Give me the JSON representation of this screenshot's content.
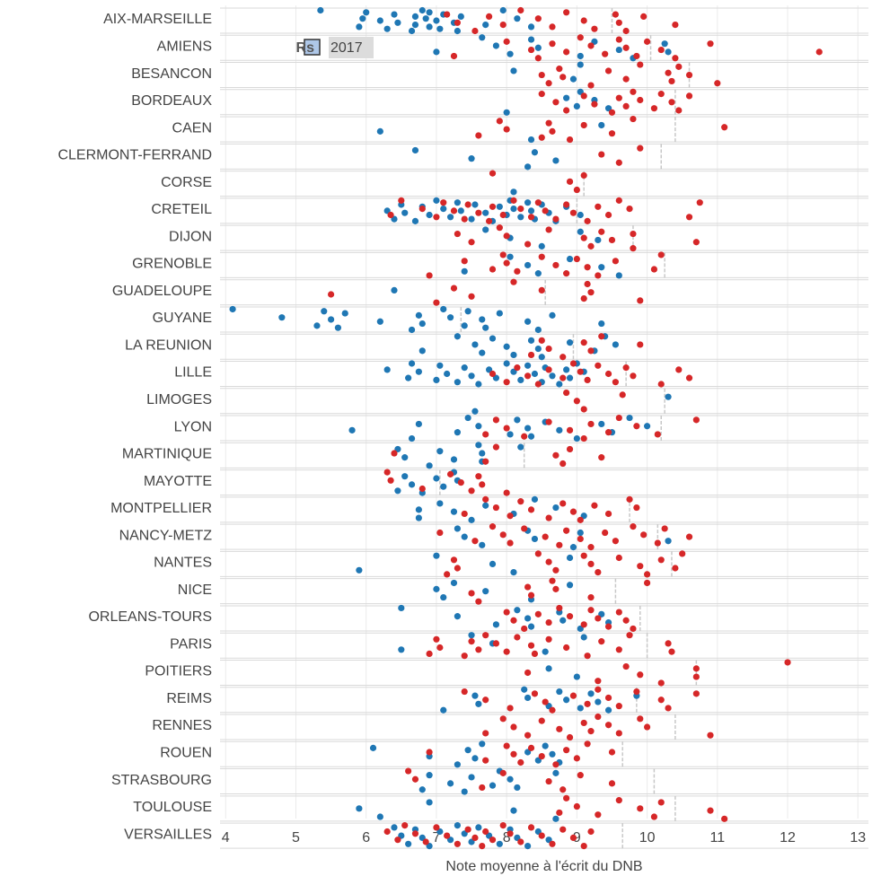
{
  "chart_data": {
    "type": "strip",
    "x_label": "Note moyenne à l'écrit du DNB",
    "xlim": [
      3.92,
      13.15
    ],
    "xticks": [
      4,
      5,
      6,
      7,
      8,
      9,
      10,
      11,
      12,
      13
    ],
    "grid": true,
    "legend_title": "Rs",
    "categories": [
      "AIX-MARSEILLE",
      "AMIENS",
      "BESANCON",
      "BORDEAUX",
      "CAEN",
      "CLERMONT-FERRAND",
      "CORSE",
      "CRETEIL",
      "DIJON",
      "GRENOBLE",
      "GUADELOUPE",
      "GUYANE",
      "LA REUNION",
      "LILLE",
      "LIMOGES",
      "LYON",
      "MARTINIQUE",
      "MAYOTTE",
      "MONTPELLIER",
      "NANCY-METZ",
      "NANTES",
      "NICE",
      "ORLEANS-TOURS",
      "PARIS",
      "POITIERS",
      "REIMS",
      "RENNES",
      "ROUEN",
      "STRASBOURG",
      "TOULOUSE",
      "VERSAILLES"
    ],
    "markers": [
      9.5,
      10.05,
      10.6,
      10.4,
      10.4,
      10.2,
      9.1,
      9.0,
      9.8,
      10.25,
      8.55,
      7.35,
      8.95,
      9.7,
      10.25,
      10.2,
      8.25,
      7.05,
      9.75,
      10.15,
      10.35,
      9.55,
      9.9,
      10.0,
      10.7,
      9.85,
      10.4,
      9.65,
      10.1,
      10.4,
      9.65
    ],
    "series": [
      {
        "name": "2017",
        "color": "#1f77b4",
        "legend_fill": "#aec7e8",
        "values": [
          [
            5.35,
            5.95,
            5.9,
            6.0,
            6.2,
            6.3,
            6.4,
            6.45,
            6.65,
            6.7,
            6.7,
            6.8,
            6.85,
            6.9,
            6.9,
            7.0,
            7.05,
            7.1,
            7.25,
            7.3,
            7.35,
            7.7,
            7.95,
            8.15,
            8.35
          ],
          [
            7.0,
            7.65,
            7.85,
            8.05,
            8.35,
            8.45,
            9.05,
            9.25,
            9.6,
            9.8,
            10.25,
            10.3
          ],
          [
            8.1,
            8.95,
            9.05
          ],
          [
            8.0,
            8.85,
            9.0,
            9.05,
            9.25,
            9.45
          ],
          [
            6.2,
            8.35,
            9.35
          ],
          [
            6.7,
            7.5,
            8.3,
            8.4,
            8.7
          ],
          [
            8.1
          ],
          [
            6.3,
            6.4,
            6.5,
            6.55,
            6.7,
            6.8,
            6.9,
            7.0,
            7.1,
            7.2,
            7.3,
            7.35,
            7.5,
            7.55,
            7.7,
            7.8,
            7.9,
            8.0,
            8.05,
            8.1,
            8.2,
            8.3,
            8.35,
            8.4,
            8.5,
            8.6,
            8.7,
            8.85,
            9.05
          ],
          [
            7.7,
            8.05,
            8.5,
            9.05,
            9.3
          ],
          [
            7.4,
            8.05,
            8.3,
            8.45,
            8.9,
            9.35,
            9.6
          ],
          [
            6.4
          ],
          [
            4.1,
            4.8,
            5.3,
            5.4,
            5.5,
            5.6,
            5.7,
            6.2,
            6.65,
            6.75,
            6.8,
            7.1,
            7.2,
            7.4,
            7.45,
            7.65,
            7.7,
            7.9,
            8.3,
            8.45,
            8.65,
            9.35
          ],
          [
            6.8,
            7.3,
            7.55,
            7.65,
            7.8,
            8.0,
            8.1,
            8.35,
            8.45,
            8.5,
            8.9,
            9.25,
            9.4,
            9.55
          ],
          [
            6.3,
            6.6,
            6.65,
            6.75,
            7.0,
            7.05,
            7.15,
            7.3,
            7.4,
            7.5,
            7.6,
            7.75,
            7.85,
            8.0,
            8.1,
            8.2,
            8.3,
            8.4,
            8.5,
            8.55,
            8.65,
            8.75,
            8.85,
            8.9,
            9.0,
            9.1
          ],
          [
            7.55,
            10.3
          ],
          [
            5.8,
            6.65,
            6.75,
            7.3,
            7.45,
            7.6,
            8.05,
            8.15,
            8.3,
            8.35,
            8.55,
            8.75,
            9.0,
            9.35,
            9.5,
            9.75,
            10.0
          ],
          [
            6.45,
            6.55,
            6.9,
            7.05,
            7.25,
            7.6,
            7.65,
            7.65,
            8.2
          ],
          [
            6.45,
            6.55,
            6.65,
            6.8,
            7.0,
            7.1,
            7.25,
            7.3
          ],
          [
            6.75,
            6.75,
            7.05,
            7.25,
            7.5,
            7.7,
            8.1,
            8.4,
            8.7,
            9.1
          ],
          [
            7.3,
            7.4,
            7.65,
            8.3,
            8.4,
            8.95,
            9.05,
            10.3
          ],
          [
            5.9,
            7.0,
            7.8,
            8.1,
            8.9
          ],
          [
            7.0,
            7.1,
            7.25,
            7.7,
            8.35,
            8.9
          ],
          [
            6.5,
            7.3,
            7.85,
            8.15,
            8.3,
            8.35,
            8.75,
            8.8,
            9.05,
            9.35,
            9.45
          ],
          [
            6.5,
            7.5,
            7.8,
            8.55,
            9.1
          ],
          [
            8.6,
            9.0
          ],
          [
            7.1,
            7.55,
            7.6,
            8.25,
            8.3,
            8.6,
            8.75,
            8.85,
            9.05,
            9.2,
            9.3,
            9.45,
            9.85
          ],
          [],
          [
            6.1,
            6.9,
            7.3,
            7.45,
            7.55,
            7.65,
            8.3,
            8.45,
            8.55,
            8.65,
            8.75
          ],
          [
            6.8,
            6.9,
            7.2,
            7.4,
            7.5,
            7.8,
            7.9,
            8.05,
            8.15,
            8.7
          ],
          [
            5.9,
            6.2,
            6.9,
            8.1,
            8.7
          ],
          [
            6.4,
            6.5,
            6.6,
            6.7,
            6.8,
            6.9,
            7.05,
            7.2,
            7.3,
            7.4,
            7.5,
            7.6,
            7.75,
            7.9,
            8.05,
            8.15,
            8.3,
            8.45,
            8.6
          ]
        ]
      },
      {
        "color": "#d62728",
        "values": [
          [
            7.15,
            7.3,
            7.55,
            7.75,
            7.95,
            8.2,
            8.45,
            8.65,
            8.85,
            9.1,
            9.25,
            9.55,
            9.6,
            9.7,
            9.95,
            10.4
          ],
          [
            7.25,
            8.0,
            8.35,
            8.45,
            8.65,
            8.85,
            9.05,
            9.2,
            9.4,
            9.6,
            9.7,
            9.85,
            10.0,
            10.2,
            10.4,
            10.9,
            12.45
          ],
          [
            8.5,
            8.6,
            8.75,
            8.8,
            9.2,
            9.45,
            9.7,
            9.9,
            10.3,
            10.35,
            10.45,
            10.6,
            11.0
          ],
          [
            8.5,
            8.7,
            8.85,
            9.1,
            9.25,
            9.5,
            9.6,
            9.7,
            9.8,
            9.9,
            10.1,
            10.2,
            10.35,
            10.45,
            10.6
          ],
          [
            7.6,
            7.9,
            8.0,
            8.5,
            8.6,
            8.65,
            8.9,
            9.1,
            9.5,
            9.8,
            11.1
          ],
          [
            9.35,
            9.6,
            9.9
          ],
          [
            7.8,
            8.9,
            9.0,
            9.1
          ],
          [
            6.35,
            6.5,
            6.8,
            7.0,
            7.1,
            7.25,
            7.4,
            7.45,
            7.6,
            7.75,
            7.8,
            7.95,
            8.1,
            8.2,
            8.35,
            8.45,
            8.55,
            8.7,
            8.85,
            8.95,
            9.15,
            9.3,
            9.45,
            9.6,
            9.75,
            10.6,
            10.75
          ],
          [
            7.3,
            7.5,
            7.9,
            8.0,
            8.3,
            8.6,
            9.1,
            9.2,
            9.35,
            9.5,
            9.8,
            9.8,
            10.7
          ],
          [
            6.9,
            7.4,
            7.8,
            7.95,
            8.0,
            8.15,
            8.5,
            8.7,
            8.85,
            9.0,
            9.15,
            9.3,
            9.55,
            10.1,
            10.2
          ],
          [
            5.5,
            7.0,
            7.25,
            7.5,
            8.1,
            8.5,
            9.1,
            9.15,
            9.2,
            9.9
          ],
          [],
          [
            8.35,
            8.5,
            8.6,
            8.8,
            9.1,
            9.2,
            9.35,
            9.9
          ],
          [
            7.8,
            8.0,
            8.15,
            8.3,
            8.45,
            8.6,
            8.8,
            8.95,
            9.05,
            9.15,
            9.3,
            9.45,
            9.55,
            9.7,
            9.8,
            10.2,
            10.45,
            10.6
          ],
          [
            8.85,
            9.0,
            9.1,
            9.65
          ],
          [
            7.7,
            7.85,
            8.0,
            8.25,
            8.6,
            8.9,
            9.1,
            9.2,
            9.45,
            9.6,
            9.85,
            10.15,
            10.7
          ],
          [
            6.4,
            7.7,
            7.85,
            8.7,
            8.8,
            8.9,
            9.35
          ],
          [
            6.3,
            6.35,
            6.8,
            7.2,
            7.35,
            7.5,
            7.6,
            7.65,
            8.0
          ],
          [
            7.4,
            7.7,
            7.85,
            8.05,
            8.2,
            8.35,
            8.6,
            8.8,
            8.95,
            9.05,
            9.25,
            9.45,
            9.75,
            9.85
          ],
          [
            7.05,
            7.55,
            7.8,
            7.95,
            8.05,
            8.25,
            8.55,
            8.75,
            8.85,
            9.05,
            9.2,
            9.4,
            9.55,
            9.8,
            9.95,
            10.15,
            10.25,
            10.6
          ],
          [
            7.15,
            7.25,
            7.3,
            8.45,
            8.6,
            8.7,
            9.1,
            9.2,
            9.3,
            9.6,
            9.9,
            10.0,
            10.2,
            10.4,
            10.5
          ],
          [
            7.5,
            7.6,
            8.3,
            8.35,
            8.65,
            8.7,
            9.2,
            10.0
          ],
          [
            8.0,
            8.1,
            8.25,
            8.45,
            8.6,
            8.75,
            8.9,
            9.1,
            9.2,
            9.3,
            9.45,
            9.6,
            9.7,
            9.8
          ],
          [
            6.9,
            7.0,
            7.05,
            7.4,
            7.5,
            7.6,
            7.7,
            7.85,
            8.0,
            8.15,
            8.35,
            8.4,
            8.6,
            8.85,
            9.15,
            9.35,
            9.6,
            9.75,
            10.3,
            10.35
          ],
          [
            8.3,
            9.3,
            9.7,
            9.9,
            10.2,
            10.7,
            10.7,
            12.0
          ],
          [
            7.4,
            7.7,
            8.05,
            8.4,
            8.55,
            8.65,
            8.95,
            9.15,
            9.3,
            9.45,
            9.6,
            9.85,
            10.2,
            10.3,
            10.7
          ],
          [
            7.7,
            7.95,
            8.1,
            8.3,
            8.5,
            8.75,
            8.9,
            9.1,
            9.2,
            9.3,
            9.45,
            9.6,
            9.9,
            10.0,
            10.9
          ],
          [
            6.9,
            7.7,
            8.0,
            8.1,
            8.2,
            8.35,
            8.5,
            8.7,
            8.85,
            9.0,
            9.15,
            9.5
          ],
          [
            6.6,
            6.7,
            7.65,
            7.95,
            8.6,
            8.8,
            9.05,
            9.5
          ],
          [
            8.75,
            8.85,
            9.0,
            9.3,
            9.6,
            9.9,
            10.1,
            10.2,
            10.9,
            11.1
          ],
          [
            6.3,
            6.45,
            6.55,
            6.7,
            6.85,
            7.0,
            7.15,
            7.3,
            7.45,
            7.55,
            7.65,
            7.7,
            7.8,
            7.95,
            8.05,
            8.2,
            8.35,
            8.5,
            8.65,
            8.8,
            8.95,
            9.1,
            9.2
          ]
        ]
      }
    ]
  }
}
